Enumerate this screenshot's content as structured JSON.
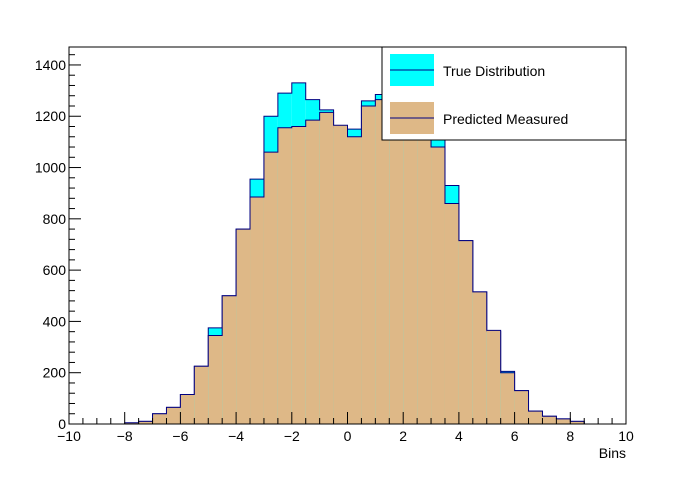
{
  "chart_data": {
    "type": "bar",
    "xlabel": "Bins",
    "xlim": [
      -10,
      10
    ],
    "ylim": [
      0,
      1470
    ],
    "x_ticks": [
      "−10",
      "−8",
      "−6",
      "−4",
      "−2",
      "0",
      "2",
      "4",
      "6",
      "8",
      "10"
    ],
    "y_ticks": [
      "0",
      "200",
      "400",
      "600",
      "800",
      "1000",
      "1200",
      "1400"
    ],
    "bin_edges": [
      -10,
      -9.5,
      -9,
      -8.5,
      -8,
      -7.5,
      -7,
      -6.5,
      -6,
      -5.5,
      -5,
      -4.5,
      -4,
      -3.5,
      -3,
      -2.5,
      -2,
      -1.5,
      -1,
      -0.5,
      0,
      0.5,
      1,
      1.5,
      2,
      2.5,
      3,
      3.5,
      4,
      4.5,
      5,
      5.5,
      6,
      6.5,
      7,
      7.5,
      8,
      8.5,
      9,
      9.5,
      10
    ],
    "legend": {
      "position": "top-right"
    },
    "series": [
      {
        "name": "True Distribution",
        "color": "#00ffff",
        "edge_color": "#000080",
        "values": [
          0,
          0,
          0,
          0,
          0,
          10,
          40,
          65,
          115,
          225,
          375,
          500,
          760,
          955,
          1200,
          1290,
          1330,
          1265,
          1225,
          1155,
          1150,
          1260,
          1285,
          1310,
          1275,
          1225,
          1160,
          930,
          715,
          515,
          360,
          205,
          130,
          50,
          30,
          20,
          10,
          0,
          0,
          0
        ]
      },
      {
        "name": "Predicted Measured",
        "color": "#deb887",
        "edge_color": "#000080",
        "values": [
          0,
          0,
          0,
          0,
          5,
          10,
          40,
          65,
          115,
          225,
          345,
          500,
          760,
          885,
          1060,
          1155,
          1160,
          1185,
          1215,
          1165,
          1120,
          1240,
          1265,
          1235,
          1190,
          1145,
          1080,
          860,
          715,
          515,
          365,
          200,
          130,
          50,
          30,
          20,
          10,
          0,
          0,
          0
        ]
      }
    ]
  }
}
